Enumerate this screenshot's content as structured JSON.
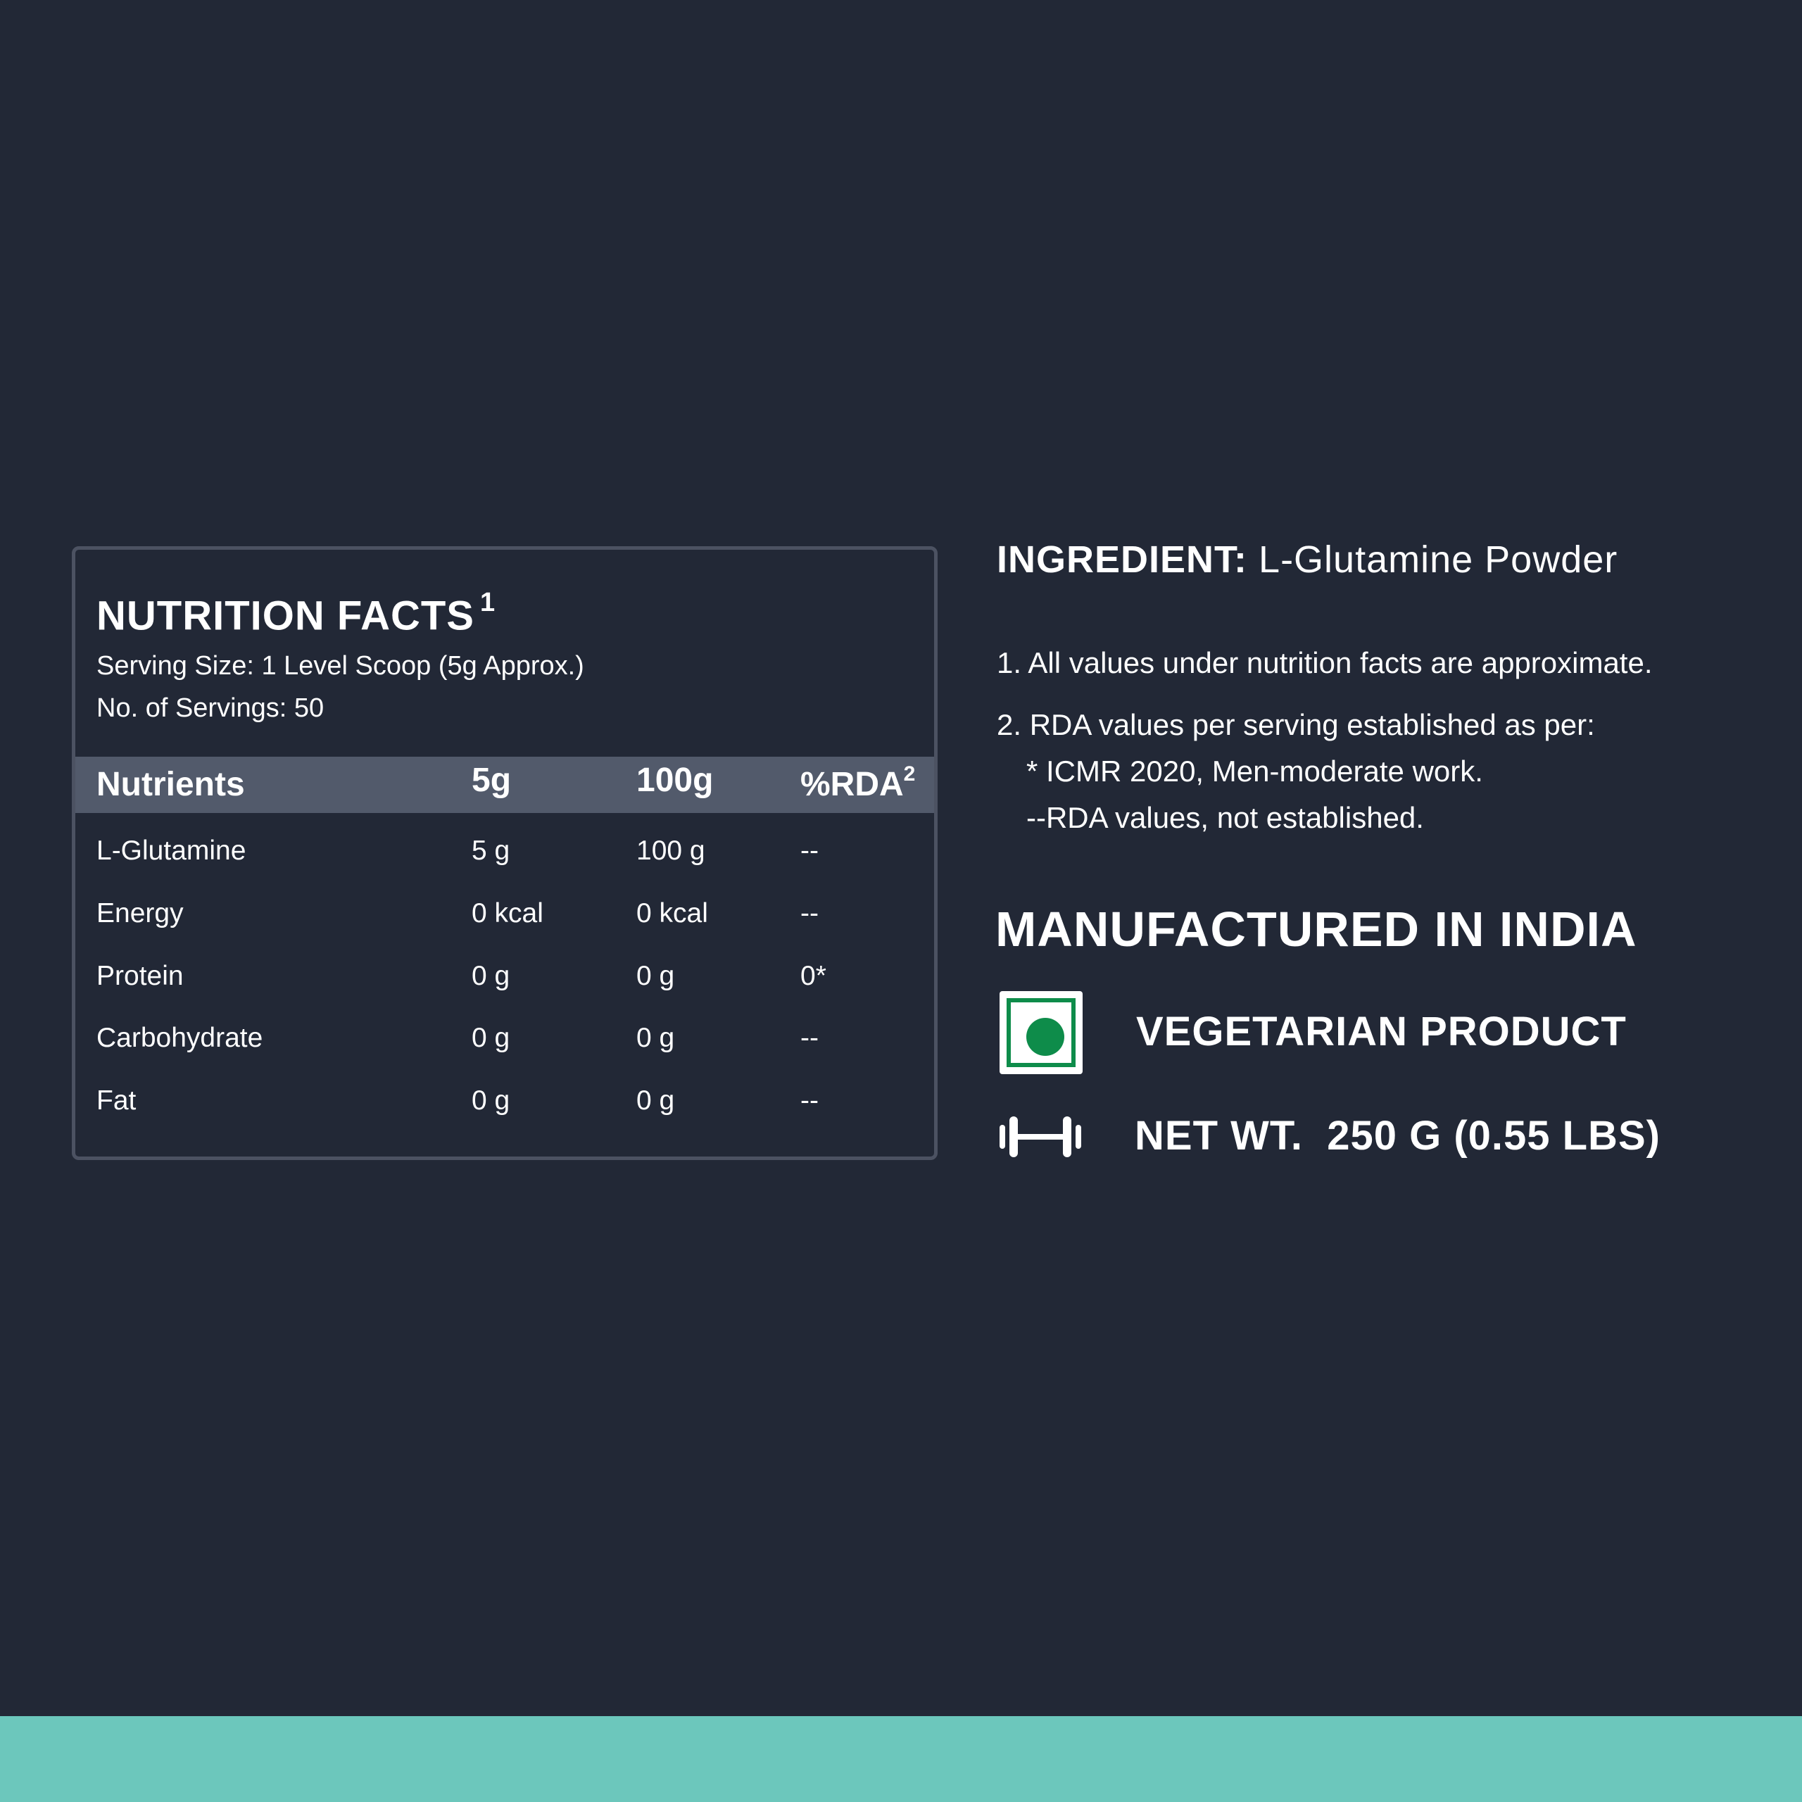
{
  "nutrition": {
    "title": "NUTRITION FACTS",
    "title_sup": "1",
    "serving_size": "Serving Size: 1 Level Scoop (5g Approx.)",
    "servings": "No. of Servings: 50",
    "headers": {
      "nutrients": "Nutrients",
      "per_serving": "5g",
      "per_100": "100g",
      "rda": "%RDA",
      "rda_sup": "2"
    },
    "rows": [
      {
        "name": "L-Glutamine",
        "serving": "5 g",
        "per100": "100 g",
        "rda": "--"
      },
      {
        "name": "Energy",
        "serving": "0 kcal",
        "per100": "0 kcal",
        "rda": "--"
      },
      {
        "name": "Protein",
        "serving": "0 g",
        "per100": "0 g",
        "rda": "0*"
      },
      {
        "name": "Carbohydrate",
        "serving": "0 g",
        "per100": "0 g",
        "rda": "--"
      },
      {
        "name": "Fat",
        "serving": "0 g",
        "per100": "0 g",
        "rda": "--"
      }
    ]
  },
  "ingredient": {
    "label": "INGREDIENT:",
    "value": "L-Glutamine Powder"
  },
  "notes": {
    "n1": "1.  All values under nutrition facts are approximate.",
    "n2": "2. RDA values per serving established as per:",
    "n3": "*  ICMR 2020, Men-moderate work.",
    "n4": "--RDA values, not established."
  },
  "origin": "MANUFACTURED IN INDIA",
  "badges": {
    "veg_icon": "vegetarian-symbol-icon",
    "veg_label": "VEGETARIAN PRODUCT",
    "weight_icon": "dumbbell-icon",
    "weight_label": "NET WT.  250 G (0.55 LBS)"
  },
  "colors": {
    "background": "#222836",
    "table_header": "#525a6b",
    "veg_green": "#0e8c4a",
    "footer_band": "#6cc7bc"
  }
}
